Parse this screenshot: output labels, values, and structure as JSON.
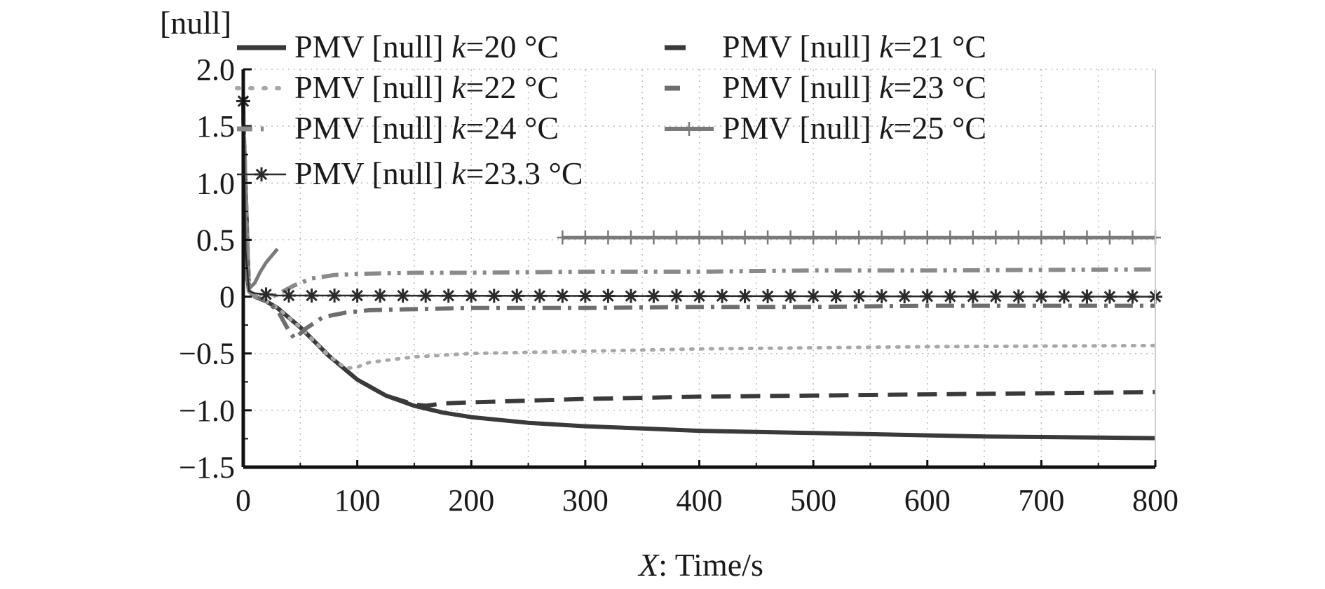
{
  "chart_data": {
    "type": "line",
    "ylabel": "[null]",
    "xlabel_var": "X",
    "xlabel_rest": ": Time/s",
    "xlim": [
      0,
      800
    ],
    "ylim": [
      -1.5,
      2.0
    ],
    "grid": true,
    "legend_position": "top",
    "x_ticks": [
      0,
      100,
      200,
      300,
      400,
      500,
      600,
      700,
      800
    ],
    "y_ticks": [
      2.0,
      1.5,
      1.0,
      0.5,
      0,
      -0.5,
      -1.0,
      -1.5
    ],
    "x_tick_labels": [
      "0",
      "100",
      "200",
      "300",
      "400",
      "500",
      "600",
      "700",
      "800"
    ],
    "y_tick_labels": [
      "2.0",
      "1.5",
      "1.0",
      "0.5",
      "0",
      "−0.5",
      "−1.0",
      "−1.5"
    ],
    "series": [
      {
        "name": "k20",
        "legend_prefix": "PMV [null] ",
        "legend_var": "k",
        "legend_value": "=20 °C",
        "color": "#3a3a3a",
        "style": "solid",
        "x": [
          0,
          2,
          5,
          10,
          20,
          30,
          50,
          75,
          100,
          125,
          150,
          175,
          200,
          250,
          300,
          350,
          400,
          450,
          500,
          550,
          600,
          650,
          700,
          750,
          800
        ],
        "y": [
          1.7,
          0.3,
          0.05,
          0,
          -0.04,
          -0.1,
          -0.27,
          -0.52,
          -0.73,
          -0.87,
          -0.96,
          -1.02,
          -1.06,
          -1.11,
          -1.14,
          -1.16,
          -1.18,
          -1.19,
          -1.2,
          -1.21,
          -1.22,
          -1.23,
          -1.235,
          -1.24,
          -1.245
        ]
      },
      {
        "name": "k21",
        "legend_prefix": "PMV [null] ",
        "legend_var": "k",
        "legend_value": "=21 °C",
        "color": "#3a3a3a",
        "style": "dashed",
        "x": [
          0,
          5,
          10,
          20,
          30,
          50,
          75,
          100,
          125,
          150,
          160,
          175,
          200,
          300,
          400,
          500,
          600,
          700,
          800
        ],
        "y": [
          1.6,
          0.05,
          0,
          -0.04,
          -0.1,
          -0.27,
          -0.52,
          -0.73,
          -0.87,
          -0.95,
          -0.96,
          -0.94,
          -0.93,
          -0.9,
          -0.88,
          -0.87,
          -0.86,
          -0.85,
          -0.84
        ]
      },
      {
        "name": "k22",
        "legend_prefix": "PMV [null] ",
        "legend_var": "k",
        "legend_value": "=22 °C",
        "color": "#a8a8a8",
        "style": "dotted",
        "x": [
          0,
          5,
          10,
          20,
          30,
          50,
          75,
          90,
          100,
          110,
          125,
          150,
          200,
          300,
          400,
          500,
          600,
          700,
          800
        ],
        "y": [
          1.6,
          0.05,
          0,
          -0.04,
          -0.1,
          -0.27,
          -0.52,
          -0.63,
          -0.62,
          -0.58,
          -0.56,
          -0.53,
          -0.5,
          -0.48,
          -0.46,
          -0.45,
          -0.44,
          -0.435,
          -0.43
        ]
      },
      {
        "name": "k23",
        "legend_prefix": "PMV [null] ",
        "legend_var": "k",
        "legend_value": "=23 °C",
        "color": "#6e6e6e",
        "style": "dashdot",
        "x": [
          0,
          5,
          10,
          20,
          30,
          40,
          45,
          55,
          70,
          90,
          110,
          150,
          200,
          300,
          400,
          500,
          600,
          700,
          800
        ],
        "y": [
          1.6,
          0.05,
          0,
          -0.04,
          -0.12,
          -0.3,
          -0.37,
          -0.28,
          -0.18,
          -0.14,
          -0.12,
          -0.11,
          -0.1,
          -0.1,
          -0.09,
          -0.09,
          -0.08,
          -0.08,
          -0.08
        ]
      },
      {
        "name": "k24",
        "legend_prefix": "PMV [null] ",
        "legend_var": "k",
        "legend_value": "=24 °C",
        "color": "#8a8a8a",
        "style": "dashdotdot",
        "x": [
          0,
          5,
          10,
          15,
          20,
          30,
          45,
          60,
          80,
          100,
          150,
          200,
          300,
          400,
          500,
          600,
          700,
          800
        ],
        "y": [
          1.6,
          0.05,
          0,
          0,
          -0.02,
          0.02,
          0.1,
          0.16,
          0.19,
          0.2,
          0.21,
          0.21,
          0.22,
          0.22,
          0.23,
          0.23,
          0.235,
          0.24
        ]
      },
      {
        "name": "k25",
        "legend_prefix": "PMV [null] ",
        "legend_var": "k",
        "legend_value": "=25 °C",
        "color": "#7a7a7a",
        "style": "plus",
        "x": [
          0,
          3,
          6,
          10,
          15,
          20,
          25,
          30,
          280,
          800
        ],
        "y": [
          1.6,
          0.15,
          0.08,
          0.12,
          0.22,
          0.3,
          0.36,
          0.42,
          0.52,
          0.52
        ],
        "gap_after_index": 7,
        "marker_x_start": 280,
        "marker_step": 20
      },
      {
        "name": "k23_3",
        "legend_prefix": "PMV [null] ",
        "legend_var": "k",
        "legend_value": "=23.3 °C",
        "color": "#2a2a2a",
        "style": "star",
        "x": [
          0,
          2,
          5,
          10,
          20,
          30,
          800
        ],
        "y": [
          1.72,
          0.4,
          0.05,
          0.03,
          0.02,
          0.01,
          0.0
        ],
        "markers_x": [
          0,
          20,
          40,
          60,
          80,
          100,
          120,
          140,
          160,
          180,
          200,
          220,
          240,
          260,
          280,
          300,
          320,
          340,
          360,
          380,
          400,
          420,
          440,
          460,
          480,
          500,
          520,
          540,
          560,
          580,
          600,
          620,
          640,
          660,
          680,
          700,
          720,
          740,
          760,
          780,
          800
        ]
      }
    ]
  }
}
